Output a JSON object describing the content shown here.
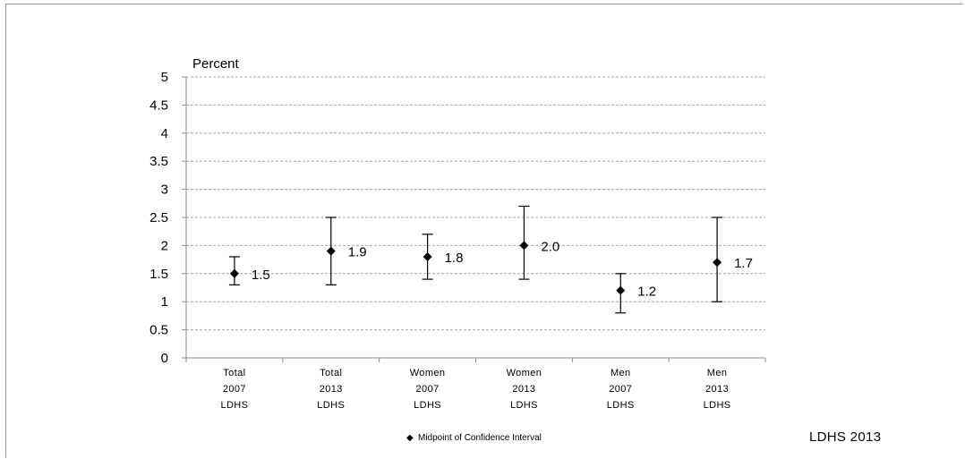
{
  "chart_data": {
    "type": "scatter",
    "ylabel": "Percent",
    "ylim": [
      0,
      5
    ],
    "yticks": [
      "0",
      "0.5",
      "1",
      "1.5",
      "2",
      "2.5",
      "3",
      "3.5",
      "4",
      "4.5",
      "5"
    ],
    "grid": true,
    "categories": [
      [
        "Total",
        "2007",
        "LDHS"
      ],
      [
        "Total",
        "2013",
        "LDHS"
      ],
      [
        "Women",
        "2007",
        "LDHS"
      ],
      [
        "Women",
        "2013",
        "LDHS"
      ],
      [
        "Men",
        "2007",
        "LDHS"
      ],
      [
        "Men",
        "2013",
        "LDHS"
      ]
    ],
    "series": [
      {
        "name": "Midpoint of Confidence Interval",
        "marker": "diamond",
        "color": "#000000",
        "values": [
          1.5,
          1.9,
          1.8,
          2.0,
          1.2,
          1.7
        ],
        "lower": [
          1.3,
          1.3,
          1.4,
          1.4,
          0.8,
          1.0
        ],
        "upper": [
          1.8,
          2.5,
          2.2,
          2.7,
          1.5,
          2.5
        ],
        "labels": [
          "1.5",
          "1.9",
          "1.8",
          "2.0",
          "1.2",
          "1.7"
        ]
      }
    ],
    "legend": {
      "position": "bottom",
      "symbol": "◆",
      "label": "Midpoint of Confidence Interval"
    },
    "source": "LDHS 2013"
  }
}
